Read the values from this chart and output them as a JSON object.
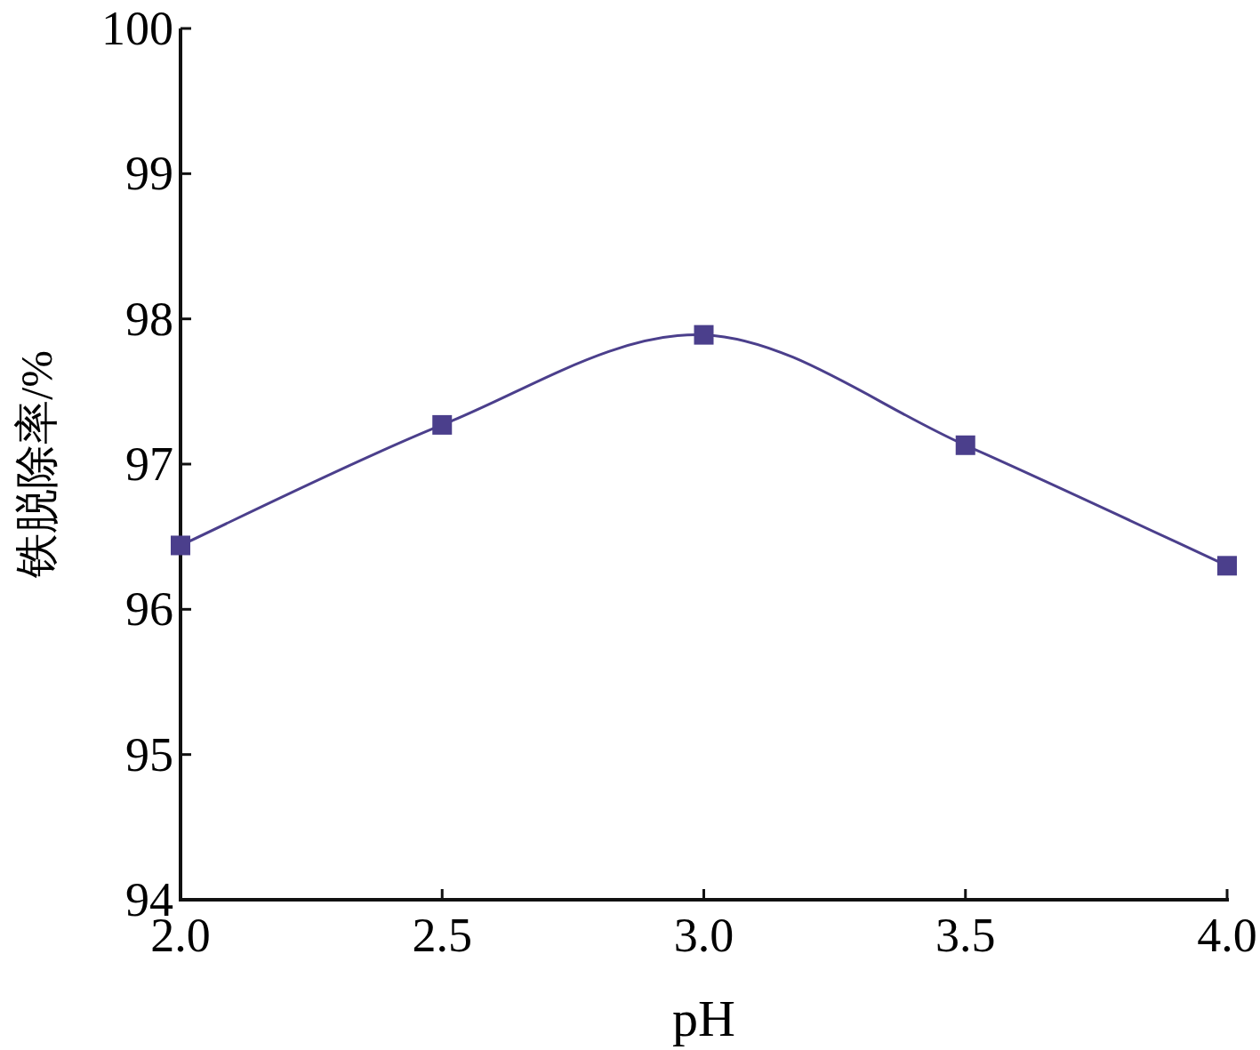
{
  "chart_data": {
    "type": "line",
    "xlabel": "pH",
    "ylabel": "铁脱除率/%",
    "x": [
      2.0,
      2.5,
      3.0,
      3.5,
      4.0
    ],
    "series": [
      {
        "color": "#4b3f8c",
        "values": [
          96.44,
          97.27,
          97.89,
          97.13,
          96.3
        ]
      }
    ],
    "xlim": [
      2.0,
      4.0
    ],
    "xticks": [
      {
        "value": 2.0,
        "label": "2.0"
      },
      {
        "value": 2.5,
        "label": "2.5"
      },
      {
        "value": 3.0,
        "label": "3.0"
      },
      {
        "value": 3.5,
        "label": "3.5"
      },
      {
        "value": 4.0,
        "label": "4.0"
      }
    ],
    "ylim": [
      94,
      100
    ],
    "yticks": [
      94,
      95,
      96,
      97,
      98,
      99,
      100
    ],
    "marker": "square",
    "line_style": "solid"
  }
}
